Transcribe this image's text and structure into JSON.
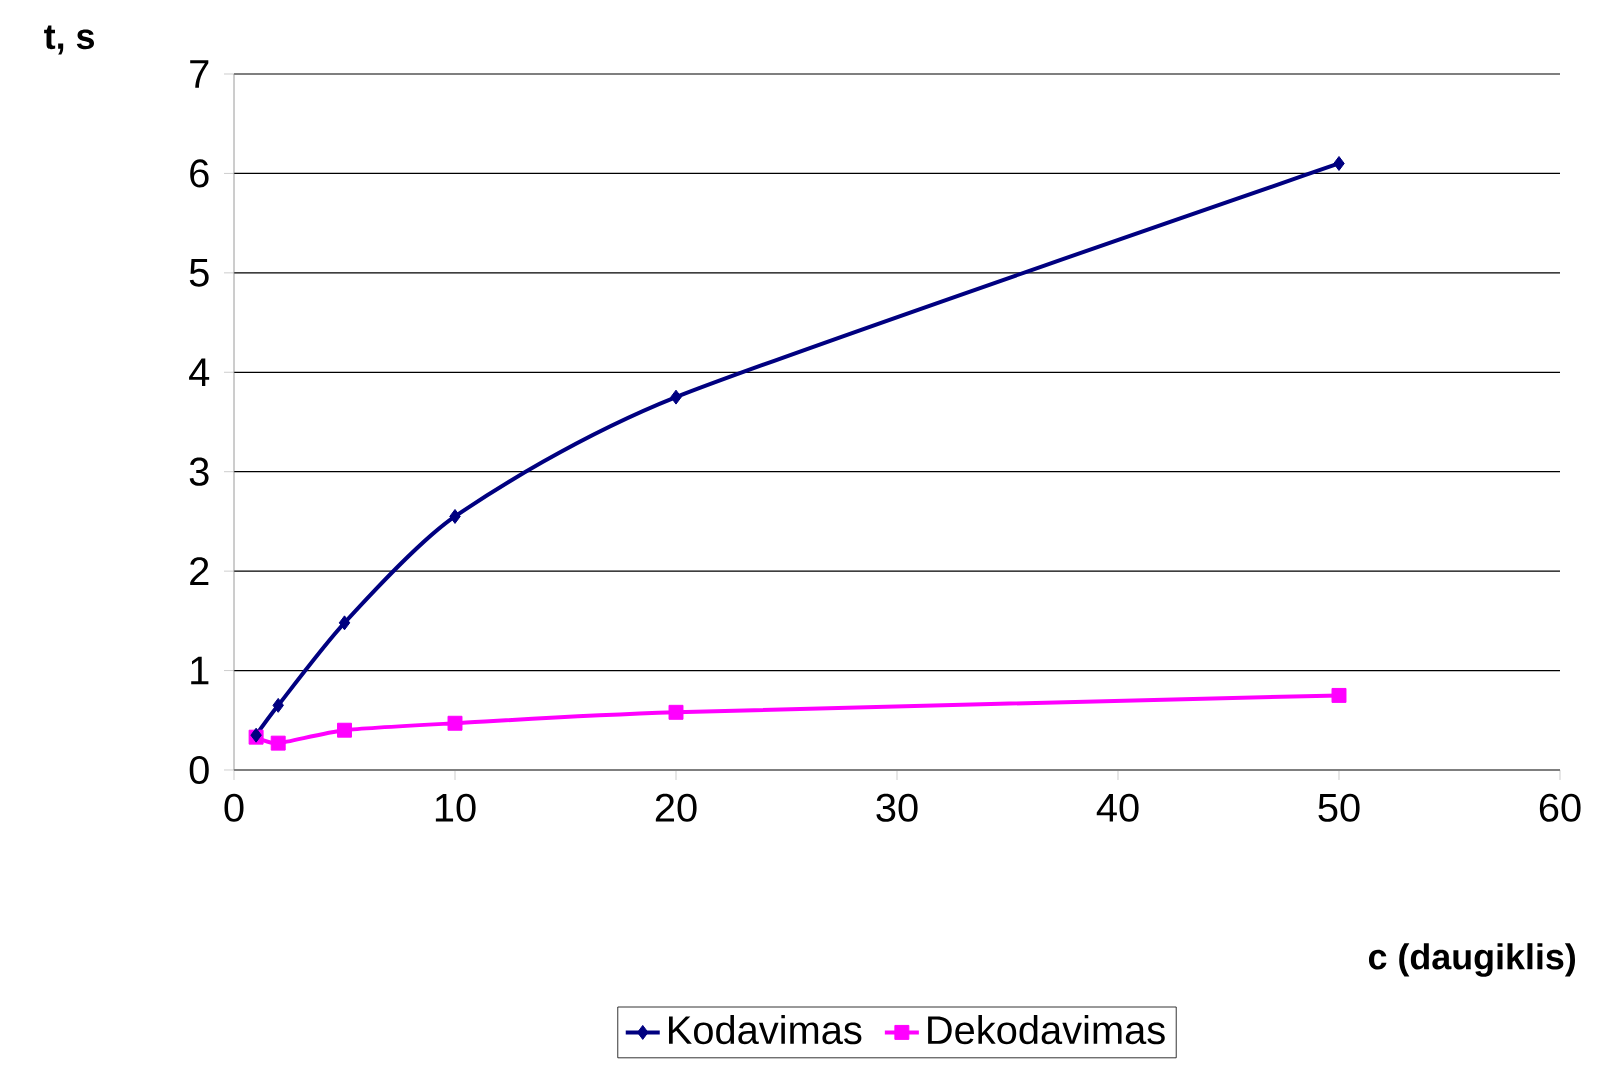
{
  "chart_data": {
    "type": "line",
    "xlabel": "c (daugiklis)",
    "ylabel": "t, s",
    "x": [
      1,
      2,
      5,
      10,
      20,
      50
    ],
    "series": [
      {
        "name": "Kodavimas",
        "color": "#000080",
        "marker": "diamond",
        "values": [
          0.35,
          0.65,
          1.48,
          2.55,
          3.75,
          6.1
        ]
      },
      {
        "name": "Dekodavimas",
        "color": "#ff00ff",
        "marker": "square",
        "values": [
          0.33,
          0.27,
          0.4,
          0.47,
          0.58,
          0.75
        ]
      }
    ],
    "xlim": [
      0,
      60
    ],
    "xticks": [
      0,
      10,
      20,
      30,
      40,
      50,
      60
    ],
    "ylim": [
      0,
      7
    ],
    "yticks": [
      0,
      1,
      2,
      3,
      4,
      5,
      6,
      7
    ],
    "grid": "y",
    "legend": "bottom",
    "line_style": "solid"
  }
}
